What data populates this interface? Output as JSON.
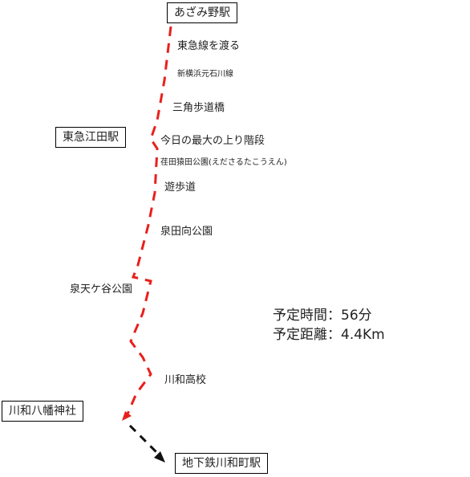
{
  "stations": [
    {
      "label": "あざみ野駅"
    },
    {
      "label": "東急江田駅"
    },
    {
      "label": "川和八幡神社"
    },
    {
      "label": "地下鉄川和町駅"
    }
  ],
  "waypoints": [
    {
      "label": "東急線を渡る"
    },
    {
      "label": "新横浜元石川線"
    },
    {
      "label": "三角歩道橋"
    },
    {
      "label": "今日の最大の上り階段"
    },
    {
      "label": "荏田猿田公園(えださるたこうえん)"
    },
    {
      "label": "遊歩道"
    },
    {
      "label": "泉田向公園"
    },
    {
      "label": "泉天ケ谷公園"
    },
    {
      "label": "川和高校"
    }
  ],
  "info": [
    "予定時間：56分",
    "予定距離：4.4Km"
  ]
}
